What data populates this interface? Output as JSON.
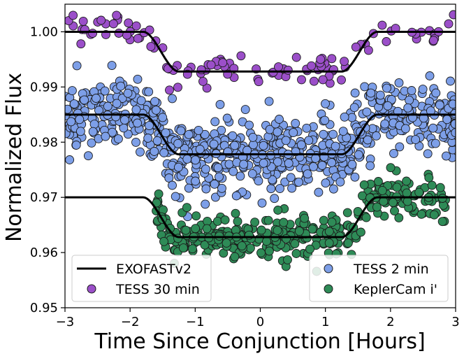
{
  "chart_data": {
    "type": "scatter",
    "xlabel": "Time Since Conjunction [Hours]",
    "ylabel": "Normalized Flux",
    "xlim": [
      -3,
      3
    ],
    "ylim": [
      0.95,
      1.005
    ],
    "xticks": [
      -3,
      -2,
      -1,
      0,
      1,
      2,
      3
    ],
    "xtick_labels": [
      "−3",
      "−2",
      "−1",
      "0",
      "1",
      "2",
      "3"
    ],
    "yticks": [
      0.95,
      0.96,
      0.97,
      0.98,
      0.99,
      1.0
    ],
    "ytick_labels": [
      "0.95",
      "0.96",
      "0.97",
      "0.98",
      "0.99",
      "1.00"
    ],
    "legend_left_position": "lower-left",
    "legend_right_position": "lower-right",
    "colors": {
      "model": "#000000",
      "tess_30min": "#9b4fc9",
      "tess_2min": "#7d9fe8",
      "keplercam": "#2e8b57",
      "edge": "#1a1a1a"
    },
    "model": {
      "name": "EXOFASTv2",
      "half_duration_hours": 1.8,
      "ingress_hours": 0.55,
      "depth": 0.0072
    },
    "series": [
      {
        "name": "TESS 30 min",
        "key": "tess_30min",
        "baseline": 1.0,
        "x_range": [
          -3,
          3
        ],
        "scatter": 0.0014,
        "n_points": 115,
        "example_points": [
          [
            -2.75,
            1.003
          ],
          [
            -2.4,
            1.002
          ],
          [
            -0.3,
            0.9928
          ],
          [
            1.5,
            0.9955
          ],
          [
            2.8,
            1.0007
          ]
        ]
      },
      {
        "name": "TESS 2 min",
        "key": "tess_2min",
        "baseline": 0.985,
        "x_range": [
          -3,
          3
        ],
        "scatter": 0.0035,
        "n_points": 720,
        "example_points": [
          [
            -2.7,
            0.9845
          ],
          [
            -1.5,
            0.9885
          ],
          [
            0.1,
            0.9775
          ],
          [
            1.6,
            0.9822
          ],
          [
            2.9,
            0.985
          ]
        ]
      },
      {
        "name": "KeplerCam i'",
        "key": "keplercam",
        "baseline": 0.97,
        "x_range": [
          -1.6,
          2.85
        ],
        "scatter": 0.0019,
        "n_points": 380,
        "example_points": [
          [
            -1.5,
            0.9655
          ],
          [
            -0.5,
            0.9636
          ],
          [
            0.5,
            0.9632
          ],
          [
            1.6,
            0.9683
          ],
          [
            2.6,
            0.9704
          ]
        ]
      }
    ]
  },
  "legend": {
    "left": {
      "model_label": "EXOFASTv2",
      "tess30_label": "TESS 30 min"
    },
    "right": {
      "tess2_label": "TESS 2 min",
      "kepler_label": "KeplerCam i'"
    }
  }
}
